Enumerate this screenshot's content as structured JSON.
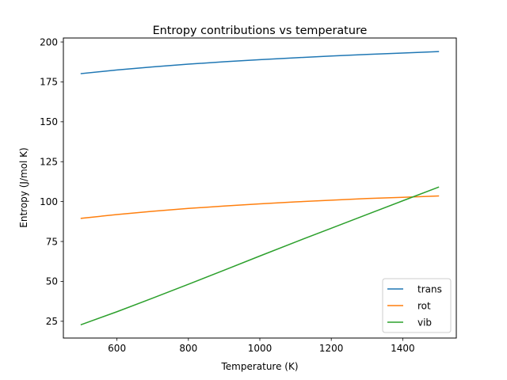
{
  "chart_data": {
    "type": "line",
    "title": "Entropy contributions vs temperature",
    "xlabel": "Temperature (K)",
    "ylabel": "Entropy (J/mol K)",
    "xlim": [
      450,
      1550
    ],
    "ylim": [
      14.5,
      202.5
    ],
    "xticks": [
      600,
      800,
      1000,
      1200,
      1400
    ],
    "yticks": [
      25,
      50,
      75,
      100,
      125,
      150,
      175,
      200
    ],
    "grid": false,
    "legend_position": "lower-right",
    "x": [
      500,
      600,
      700,
      800,
      900,
      1000,
      1100,
      1200,
      1300,
      1400,
      1500
    ],
    "series": [
      {
        "name": "trans",
        "color": "#1f77b4",
        "values": [
          180.2,
          182.5,
          184.4,
          186.1,
          187.6,
          188.9,
          190.1,
          191.2,
          192.2,
          193.1,
          194.0
        ]
      },
      {
        "name": "rot",
        "color": "#ff7f0e",
        "values": [
          89.5,
          91.9,
          93.9,
          95.7,
          97.2,
          98.6,
          99.8,
          100.9,
          101.9,
          102.7,
          103.5
        ]
      },
      {
        "name": "vib",
        "color": "#2ca02c",
        "values": [
          22.9,
          31.0,
          39.5,
          48.2,
          57.0,
          65.9,
          74.7,
          83.3,
          91.9,
          100.5,
          109.0
        ]
      }
    ]
  }
}
